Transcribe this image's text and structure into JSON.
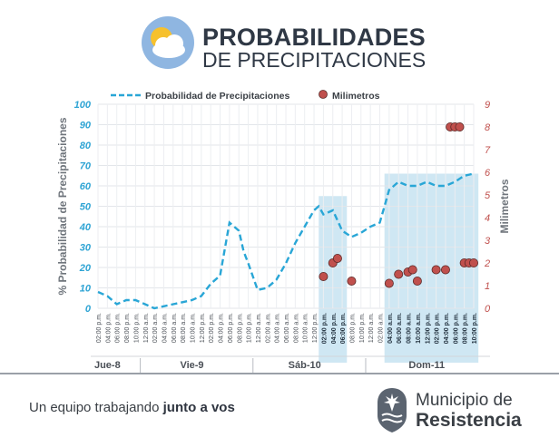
{
  "header": {
    "title_line1": "PROBABILIDADES",
    "title_line2": "DE PRECIPITACIONES",
    "icon": "sun-cloud-icon"
  },
  "footer": {
    "tagline_prefix": "Un equipo trabajando ",
    "tagline_bold": "junto a vos",
    "org_line1": "Municipio de",
    "org_line2": "Resistencia",
    "logo_icon": "municipality-emblem-icon"
  },
  "chart_data": {
    "type": "line",
    "colors": {
      "probability": "#29a6d6",
      "millimeters": "#c0504d",
      "shade": "#cfe7f3",
      "left_axis": "#2fa4d4",
      "right_axis": "#c0504d"
    },
    "legend": [
      {
        "label": "Probabilidad de Precipitaciones",
        "symbol": "dashed-line"
      },
      {
        "label": "Milimetros",
        "symbol": "circle"
      }
    ],
    "legend_position": "top",
    "ylabel_left": "% Probabilidad de Precipitaciones",
    "ylabel_right": "Milimetros",
    "ylim_left": [
      0,
      100
    ],
    "ylim_right": [
      0,
      9
    ],
    "yticks_left": [
      "0",
      "10",
      "20",
      "30",
      "40",
      "50",
      "60",
      "70",
      "80",
      "90",
      "100"
    ],
    "yticks_right": [
      "0",
      "1",
      "2",
      "3",
      "4",
      "5",
      "6",
      "7",
      "8",
      "9"
    ],
    "grid": true,
    "x_tick_labels": [
      "02:00 p.m.",
      "04:00 p.m.",
      "06:00 p.m.",
      "08:00 p.m.",
      "10:00 p.m.",
      "12:00 a.m.",
      "02:00 a.m.",
      "04:00 a.m.",
      "06:00 a.m.",
      "08:00 a.m.",
      "10:00 a.m.",
      "12:00 p.m.",
      "02:00 p.m.",
      "04:00 p.m.",
      "06:00 p.m.",
      "08:00 p.m.",
      "10:00 p.m.",
      "12:00 a.m.",
      "02:00 a.m.",
      "04:00 a.m.",
      "06:00 a.m.",
      "08:00 a.m.",
      "10:00 a.m.",
      "12:00 p.m.",
      "02:00 p.m.",
      "04:00 p.m.",
      "06:00 p.m.",
      "08:00 p.m.",
      "10:00 p.m.",
      "12:00 a.m.",
      "02:00 a.m.",
      "04:00 a.m.",
      "06:00 a.m.",
      "08:00 a.m.",
      "10:00 a.m.",
      "12:00 p.m.",
      "02:00 p.m.",
      "04:00 p.m.",
      "06:00 p.m.",
      "08:00 p.m.",
      "10:00 p.m."
    ],
    "bold_tick_indices": [
      24,
      25,
      26,
      31,
      32,
      33,
      34,
      35,
      36,
      37,
      38,
      39,
      40
    ],
    "days": [
      {
        "label": "Jue-8",
        "at_tick": 1
      },
      {
        "label": "Vie-9",
        "at_tick": 10
      },
      {
        "label": "Sáb-10",
        "at_tick": 22
      },
      {
        "label": "Dom-11",
        "at_tick": 35
      }
    ],
    "shaded_ranges": [
      [
        23.5,
        26.5
      ],
      [
        30.5,
        40.5
      ]
    ],
    "probability_series": {
      "name": "Probabilidad de Precipitaciones",
      "x": [
        0,
        0.5,
        1,
        1.5,
        2,
        3,
        4,
        5,
        6,
        7,
        8,
        9,
        10,
        11,
        12,
        13,
        14,
        15,
        15.5,
        16,
        17,
        18,
        19,
        20,
        21,
        22,
        23,
        23.5,
        24,
        25,
        26,
        27,
        28,
        29,
        30,
        30.5,
        31,
        32,
        33,
        34,
        35,
        36,
        37,
        38,
        39,
        40
      ],
      "values": [
        8,
        7,
        6,
        4,
        2,
        4,
        4,
        2,
        0,
        1,
        2,
        3,
        4,
        6,
        12,
        16,
        42,
        38,
        28,
        22,
        9,
        10,
        14,
        22,
        32,
        40,
        48,
        50,
        46,
        48,
        38,
        35,
        37,
        40,
        42,
        50,
        58,
        62,
        60,
        60,
        62,
        60,
        60,
        62,
        65,
        66
      ]
    },
    "millimeter_series": {
      "name": "Milimetros",
      "points": [
        {
          "x": 24,
          "y": 1.4
        },
        {
          "x": 25,
          "y": 2.0
        },
        {
          "x": 25.5,
          "y": 2.2
        },
        {
          "x": 27,
          "y": 1.2
        },
        {
          "x": 31,
          "y": 1.1
        },
        {
          "x": 32,
          "y": 1.5
        },
        {
          "x": 33,
          "y": 1.6
        },
        {
          "x": 33.5,
          "y": 1.7
        },
        {
          "x": 34,
          "y": 1.2
        },
        {
          "x": 36,
          "y": 1.7
        },
        {
          "x": 37,
          "y": 1.7
        },
        {
          "x": 37.5,
          "y": 8.0
        },
        {
          "x": 38,
          "y": 8.0
        },
        {
          "x": 38.5,
          "y": 8.0
        },
        {
          "x": 39,
          "y": 2.0
        },
        {
          "x": 39.5,
          "y": 2.0
        },
        {
          "x": 40,
          "y": 2.0
        }
      ]
    }
  }
}
